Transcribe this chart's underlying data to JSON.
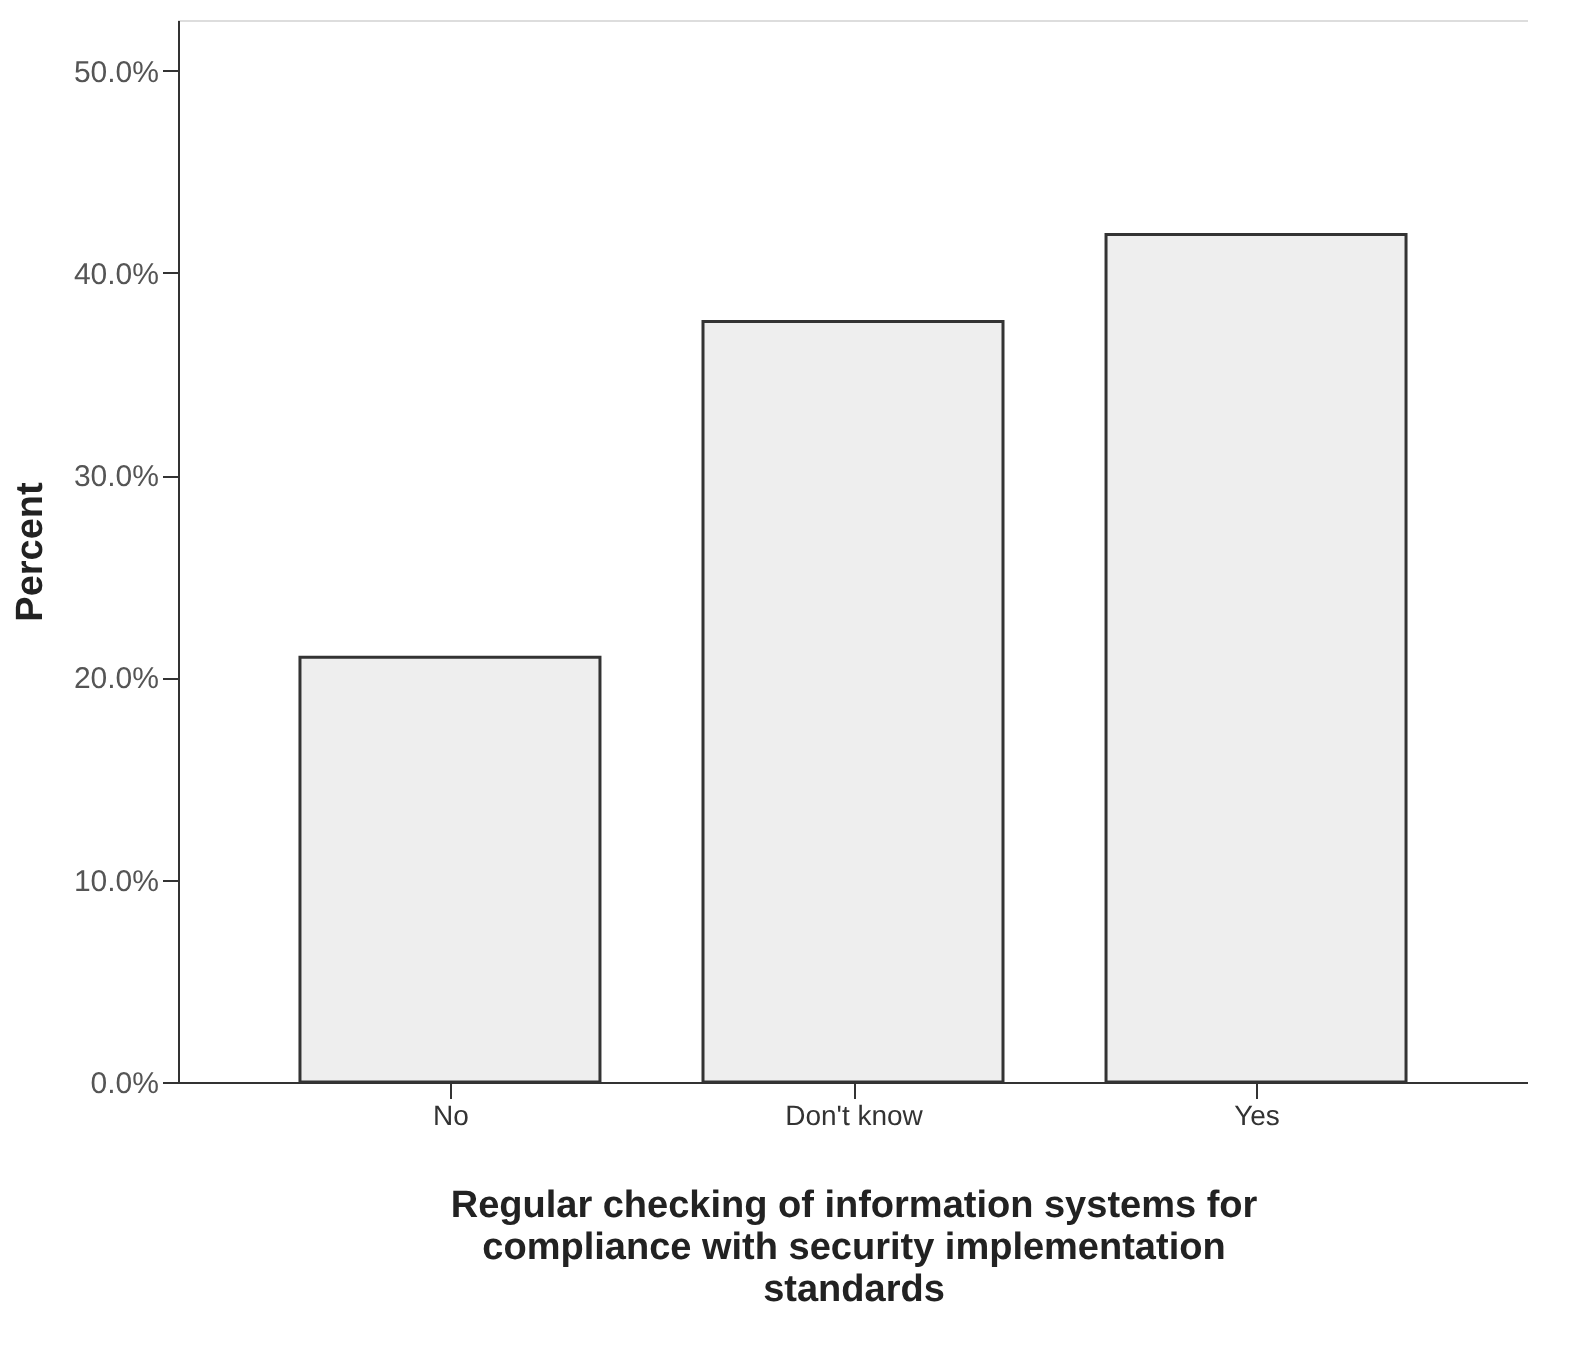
{
  "chart_data": {
    "type": "bar",
    "categories": [
      "No",
      "Don't know",
      "Yes"
    ],
    "values": [
      21.0,
      37.6,
      41.9
    ],
    "color": "#eeeeee",
    "xlabel": "Regular checking of information systems for compliance with security implementation standards",
    "ylabel": "Percent",
    "ylim": [
      0,
      52.5
    ],
    "yticks": [
      {
        "value": 0,
        "label": "0.0%"
      },
      {
        "value": 10,
        "label": "10.0%"
      },
      {
        "value": 20,
        "label": "20.0%"
      },
      {
        "value": 30,
        "label": "30.0%"
      },
      {
        "value": 40,
        "label": "40.0%"
      },
      {
        "value": 50,
        "label": "50.0%"
      }
    ],
    "grid": false
  }
}
